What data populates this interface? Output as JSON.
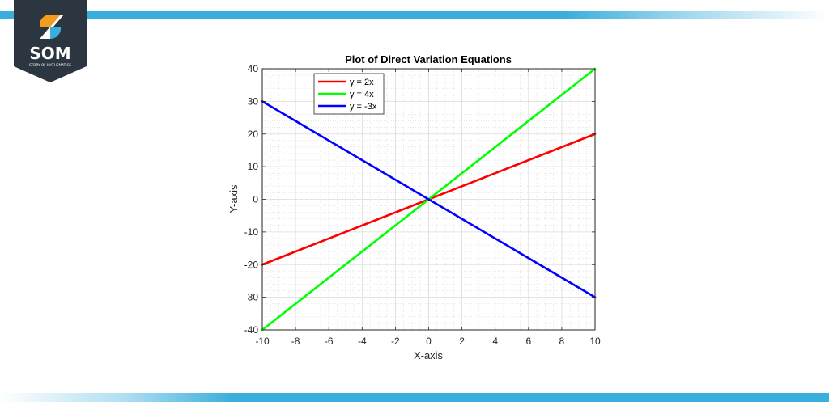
{
  "brand": {
    "logo_text": "SOM",
    "logo_subtext": "STORY OF MATHEMATICS",
    "colors": {
      "bar": "#3aaedc",
      "shield": "#2b3640",
      "orange": "#f39c1e",
      "blue": "#3aaedc"
    }
  },
  "chart_data": {
    "type": "line",
    "title": "Plot of Direct Variation Equations",
    "xlabel": "X-axis",
    "ylabel": "Y-axis",
    "xlim": [
      -10,
      10
    ],
    "ylim": [
      -40,
      40
    ],
    "xticks": [
      -10,
      -8,
      -6,
      -4,
      -2,
      0,
      2,
      4,
      6,
      8,
      10
    ],
    "yticks": [
      40,
      30,
      20,
      10,
      0,
      -10,
      -20,
      -30,
      -40
    ],
    "grid": true,
    "minor_grid": true,
    "legend_position": "upper left",
    "x": [
      -10,
      10
    ],
    "series": [
      {
        "name": "y = 2x",
        "color": "#ff0000",
        "values": [
          -20,
          20
        ]
      },
      {
        "name": "y = 4x",
        "color": "#00ff00",
        "values": [
          -40,
          40
        ]
      },
      {
        "name": "y = -3x",
        "color": "#0000ff",
        "values": [
          30,
          -30
        ]
      }
    ]
  }
}
